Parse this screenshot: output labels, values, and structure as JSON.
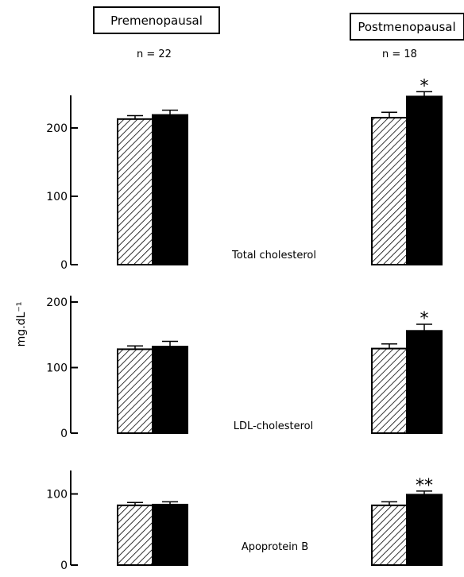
{
  "header": {
    "groups": [
      {
        "label": "Premenopausal",
        "n": "n = 22"
      },
      {
        "label": "Postmenopausal",
        "n": "n = 18"
      }
    ]
  },
  "y_label": "mg.dL⁻¹",
  "chart_data": [
    {
      "type": "bar",
      "title": "Total cholesterol",
      "categories": [
        "Premenopausal",
        "Postmenopausal"
      ],
      "ylim": [
        0,
        250
      ],
      "yticks": [
        0,
        100,
        200
      ],
      "series": [
        {
          "pattern": "hatched",
          "values": [
            213,
            215
          ],
          "errors": [
            5,
            8
          ]
        },
        {
          "pattern": "solid",
          "values": [
            219,
            246
          ],
          "errors": [
            7,
            7
          ]
        }
      ],
      "annotations": [
        "",
        "*"
      ]
    },
    {
      "type": "bar",
      "title": "LDL-cholesterol",
      "categories": [
        "Premenopausal",
        "Postmenopausal"
      ],
      "ylim": [
        0,
        200
      ],
      "yticks": [
        0,
        100,
        200
      ],
      "series": [
        {
          "pattern": "hatched",
          "values": [
            128,
            129
          ],
          "errors": [
            5,
            7
          ]
        },
        {
          "pattern": "solid",
          "values": [
            132,
            156
          ],
          "errors": [
            8,
            10
          ]
        }
      ],
      "annotations": [
        "",
        "*"
      ]
    },
    {
      "type": "bar",
      "title": "Apoprotein B",
      "categories": [
        "Premenopausal",
        "Postmenopausal"
      ],
      "ylim": [
        0,
        150
      ],
      "yticks": [
        0,
        100
      ],
      "series": [
        {
          "pattern": "hatched",
          "values": [
            84,
            84
          ],
          "errors": [
            4,
            5
          ]
        },
        {
          "pattern": "solid",
          "values": [
            85,
            99
          ],
          "errors": [
            4,
            5
          ]
        }
      ],
      "annotations": [
        "",
        "**"
      ]
    }
  ],
  "colors": {
    "ink": "#000000",
    "paper": "#ffffff"
  }
}
